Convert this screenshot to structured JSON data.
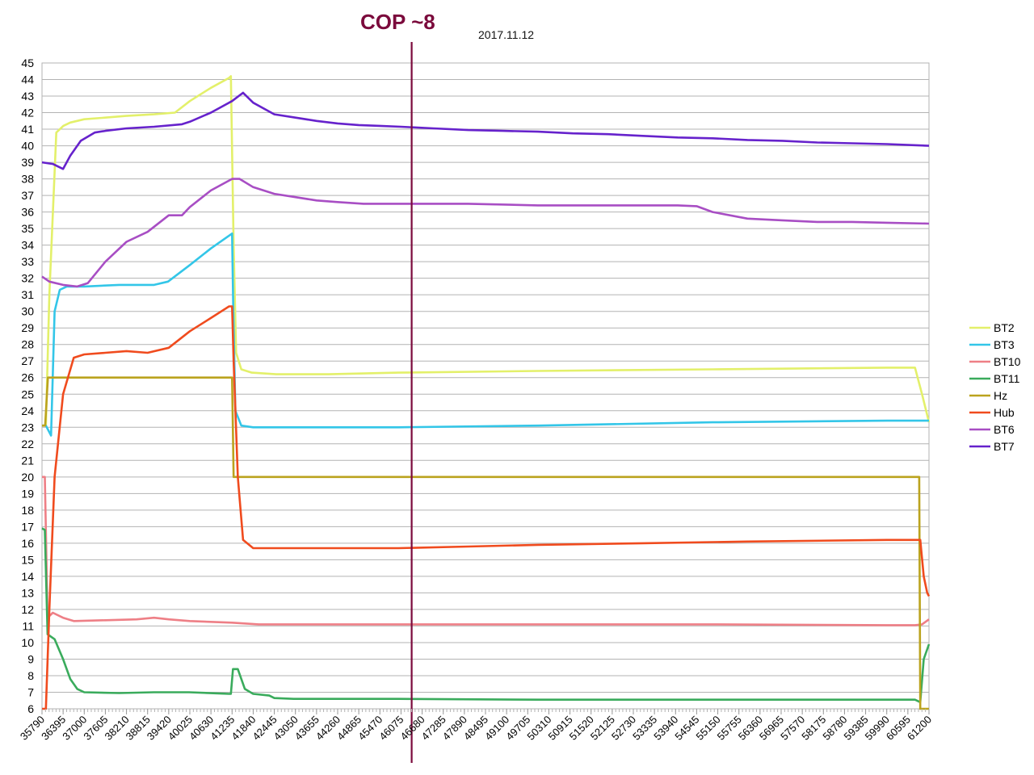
{
  "chart_data": {
    "type": "line",
    "title": "2017.11.12",
    "annotation": {
      "label": "COP ~8",
      "x": 46380,
      "color": "#7b0a3c"
    },
    "xlabel": "",
    "ylabel": "",
    "xlim": [
      35790,
      61200
    ],
    "ylim": [
      6,
      45
    ],
    "grid": true,
    "legend": "right",
    "x_ticks": [
      35790,
      36395,
      37000,
      37605,
      38210,
      38815,
      39420,
      40025,
      40630,
      41235,
      41840,
      42445,
      43050,
      43655,
      44260,
      44865,
      45470,
      46075,
      46680,
      47285,
      47890,
      48495,
      49100,
      49705,
      50310,
      50915,
      51520,
      52125,
      52730,
      53335,
      53940,
      54545,
      55150,
      55755,
      56360,
      56965,
      57570,
      58175,
      58780,
      59385,
      59990,
      60595,
      61200
    ],
    "y_ticks": [
      6,
      7,
      8,
      9,
      10,
      11,
      12,
      13,
      14,
      15,
      16,
      17,
      18,
      19,
      20,
      21,
      22,
      23,
      24,
      25,
      26,
      27,
      28,
      29,
      30,
      31,
      32,
      33,
      34,
      35,
      36,
      37,
      38,
      39,
      40,
      41,
      42,
      43,
      44,
      45
    ],
    "series": [
      {
        "name": "BT2",
        "color": "#e3f06a",
        "points": [
          [
            35790,
            23.1
          ],
          [
            35900,
            23.1
          ],
          [
            36000,
            31
          ],
          [
            36200,
            40.8
          ],
          [
            36400,
            41.2
          ],
          [
            36600,
            41.4
          ],
          [
            37000,
            41.6
          ],
          [
            37600,
            41.7
          ],
          [
            38200,
            41.8
          ],
          [
            39000,
            41.9
          ],
          [
            39600,
            42
          ],
          [
            40025,
            42.7
          ],
          [
            40630,
            43.5
          ],
          [
            41150,
            44.1
          ],
          [
            41200,
            44.2
          ],
          [
            41280,
            34
          ],
          [
            41350,
            27.5
          ],
          [
            41500,
            26.5
          ],
          [
            41800,
            26.3
          ],
          [
            42500,
            26.2
          ],
          [
            44000,
            26.2
          ],
          [
            46000,
            26.3
          ],
          [
            50000,
            26.4
          ],
          [
            55000,
            26.5
          ],
          [
            60000,
            26.6
          ],
          [
            60800,
            26.6
          ],
          [
            61000,
            25
          ],
          [
            61200,
            23.3
          ]
        ]
      },
      {
        "name": "BT3",
        "color": "#33c6e8",
        "points": [
          [
            35790,
            23.1
          ],
          [
            35900,
            23.1
          ],
          [
            36050,
            22.5
          ],
          [
            36150,
            30
          ],
          [
            36300,
            31.3
          ],
          [
            36500,
            31.5
          ],
          [
            37000,
            31.5
          ],
          [
            38000,
            31.6
          ],
          [
            39000,
            31.6
          ],
          [
            39400,
            31.8
          ],
          [
            40025,
            32.8
          ],
          [
            40630,
            33.8
          ],
          [
            41235,
            34.7
          ],
          [
            41270,
            30
          ],
          [
            41330,
            24
          ],
          [
            41500,
            23.1
          ],
          [
            41840,
            23
          ],
          [
            43000,
            23
          ],
          [
            46000,
            23
          ],
          [
            50000,
            23.1
          ],
          [
            55000,
            23.3
          ],
          [
            60000,
            23.4
          ],
          [
            61200,
            23.4
          ]
        ]
      },
      {
        "name": "BT10",
        "color": "#ee7f86",
        "points": [
          [
            35790,
            20
          ],
          [
            35870,
            20
          ],
          [
            35950,
            11.5
          ],
          [
            36100,
            11.8
          ],
          [
            36395,
            11.5
          ],
          [
            36700,
            11.3
          ],
          [
            37605,
            11.35
          ],
          [
            38500,
            11.4
          ],
          [
            39000,
            11.5
          ],
          [
            39420,
            11.4
          ],
          [
            40025,
            11.3
          ],
          [
            41235,
            11.2
          ],
          [
            42000,
            11.1
          ],
          [
            45000,
            11.1
          ],
          [
            50000,
            11.1
          ],
          [
            55000,
            11.1
          ],
          [
            60000,
            11.05
          ],
          [
            60800,
            11.05
          ],
          [
            61000,
            11.1
          ],
          [
            61200,
            11.4
          ]
        ]
      },
      {
        "name": "BT11",
        "color": "#3aab5c",
        "points": [
          [
            35790,
            16.9
          ],
          [
            35870,
            16.8
          ],
          [
            35950,
            10.5
          ],
          [
            36150,
            10.2
          ],
          [
            36395,
            9
          ],
          [
            36600,
            7.8
          ],
          [
            36800,
            7.2
          ],
          [
            37000,
            7
          ],
          [
            38000,
            6.95
          ],
          [
            39000,
            7
          ],
          [
            40000,
            7
          ],
          [
            41150,
            6.9
          ],
          [
            41200,
            6.9
          ],
          [
            41260,
            8.4
          ],
          [
            41400,
            8.4
          ],
          [
            41600,
            7.2
          ],
          [
            41840,
            6.9
          ],
          [
            42300,
            6.8
          ],
          [
            42445,
            6.65
          ],
          [
            43000,
            6.6
          ],
          [
            46000,
            6.6
          ],
          [
            50000,
            6.55
          ],
          [
            55000,
            6.55
          ],
          [
            60800,
            6.55
          ],
          [
            60950,
            6.4
          ],
          [
            61050,
            9
          ],
          [
            61200,
            9.9
          ]
        ]
      },
      {
        "name": "Hz",
        "color": "#bba31e",
        "points": [
          [
            35790,
            23.1
          ],
          [
            35880,
            23.1
          ],
          [
            35960,
            26
          ],
          [
            36395,
            26
          ],
          [
            37000,
            26
          ],
          [
            38000,
            26
          ],
          [
            39000,
            26
          ],
          [
            40000,
            26
          ],
          [
            41150,
            26
          ],
          [
            41235,
            26
          ],
          [
            41280,
            20
          ],
          [
            41840,
            20
          ],
          [
            45000,
            20
          ],
          [
            50000,
            20
          ],
          [
            55000,
            20
          ],
          [
            60000,
            20
          ],
          [
            60920,
            20
          ],
          [
            60950,
            6
          ],
          [
            61200,
            6
          ]
        ]
      },
      {
        "name": "Hub",
        "color": "#f04b1e",
        "points": [
          [
            35790,
            6
          ],
          [
            35900,
            6
          ],
          [
            36000,
            12
          ],
          [
            36150,
            20
          ],
          [
            36395,
            25
          ],
          [
            36700,
            27.2
          ],
          [
            37000,
            27.4
          ],
          [
            37605,
            27.5
          ],
          [
            38210,
            27.6
          ],
          [
            38815,
            27.5
          ],
          [
            39420,
            27.8
          ],
          [
            40025,
            28.8
          ],
          [
            40630,
            29.6
          ],
          [
            41150,
            30.3
          ],
          [
            41235,
            30.3
          ],
          [
            41280,
            27
          ],
          [
            41400,
            20
          ],
          [
            41550,
            16.2
          ],
          [
            41840,
            15.7
          ],
          [
            43000,
            15.7
          ],
          [
            46000,
            15.7
          ],
          [
            48000,
            15.8
          ],
          [
            50000,
            15.9
          ],
          [
            53000,
            16
          ],
          [
            56000,
            16.1
          ],
          [
            60000,
            16.2
          ],
          [
            60950,
            16.2
          ],
          [
            61050,
            14
          ],
          [
            61150,
            13
          ],
          [
            61200,
            12.8
          ]
        ]
      },
      {
        "name": "BT6",
        "color": "#a84ec4",
        "points": [
          [
            35790,
            32.1
          ],
          [
            36000,
            31.8
          ],
          [
            36395,
            31.6
          ],
          [
            36800,
            31.5
          ],
          [
            37100,
            31.7
          ],
          [
            37605,
            33
          ],
          [
            38210,
            34.2
          ],
          [
            38815,
            34.8
          ],
          [
            39420,
            35.8
          ],
          [
            39800,
            35.8
          ],
          [
            40025,
            36.3
          ],
          [
            40630,
            37.3
          ],
          [
            41235,
            38
          ],
          [
            41450,
            38
          ],
          [
            41840,
            37.5
          ],
          [
            42445,
            37.1
          ],
          [
            43050,
            36.9
          ],
          [
            43655,
            36.7
          ],
          [
            44260,
            36.6
          ],
          [
            45000,
            36.5
          ],
          [
            46000,
            36.5
          ],
          [
            48000,
            36.5
          ],
          [
            50000,
            36.4
          ],
          [
            52000,
            36.4
          ],
          [
            54000,
            36.4
          ],
          [
            54545,
            36.35
          ],
          [
            55000,
            36
          ],
          [
            56000,
            35.6
          ],
          [
            57000,
            35.5
          ],
          [
            58000,
            35.4
          ],
          [
            59000,
            35.4
          ],
          [
            60000,
            35.35
          ],
          [
            61200,
            35.3
          ]
        ]
      },
      {
        "name": "BT7",
        "color": "#6622cc",
        "points": [
          [
            35790,
            39
          ],
          [
            36100,
            38.9
          ],
          [
            36395,
            38.6
          ],
          [
            36600,
            39.4
          ],
          [
            36900,
            40.3
          ],
          [
            37300,
            40.8
          ],
          [
            37605,
            40.9
          ],
          [
            38210,
            41.05
          ],
          [
            39000,
            41.15
          ],
          [
            39800,
            41.3
          ],
          [
            40025,
            41.45
          ],
          [
            40630,
            42
          ],
          [
            41235,
            42.7
          ],
          [
            41550,
            43.2
          ],
          [
            41840,
            42.6
          ],
          [
            42445,
            41.9
          ],
          [
            43050,
            41.7
          ],
          [
            43655,
            41.5
          ],
          [
            44260,
            41.35
          ],
          [
            44865,
            41.25
          ],
          [
            45470,
            41.2
          ],
          [
            46075,
            41.15
          ],
          [
            47000,
            41.05
          ],
          [
            48000,
            40.95
          ],
          [
            49000,
            40.9
          ],
          [
            50000,
            40.85
          ],
          [
            51000,
            40.75
          ],
          [
            52000,
            40.7
          ],
          [
            53000,
            40.6
          ],
          [
            54000,
            40.5
          ],
          [
            55000,
            40.45
          ],
          [
            56000,
            40.35
          ],
          [
            57000,
            40.3
          ],
          [
            58000,
            40.2
          ],
          [
            59000,
            40.15
          ],
          [
            60000,
            40.1
          ],
          [
            61200,
            40.0
          ]
        ]
      }
    ]
  }
}
